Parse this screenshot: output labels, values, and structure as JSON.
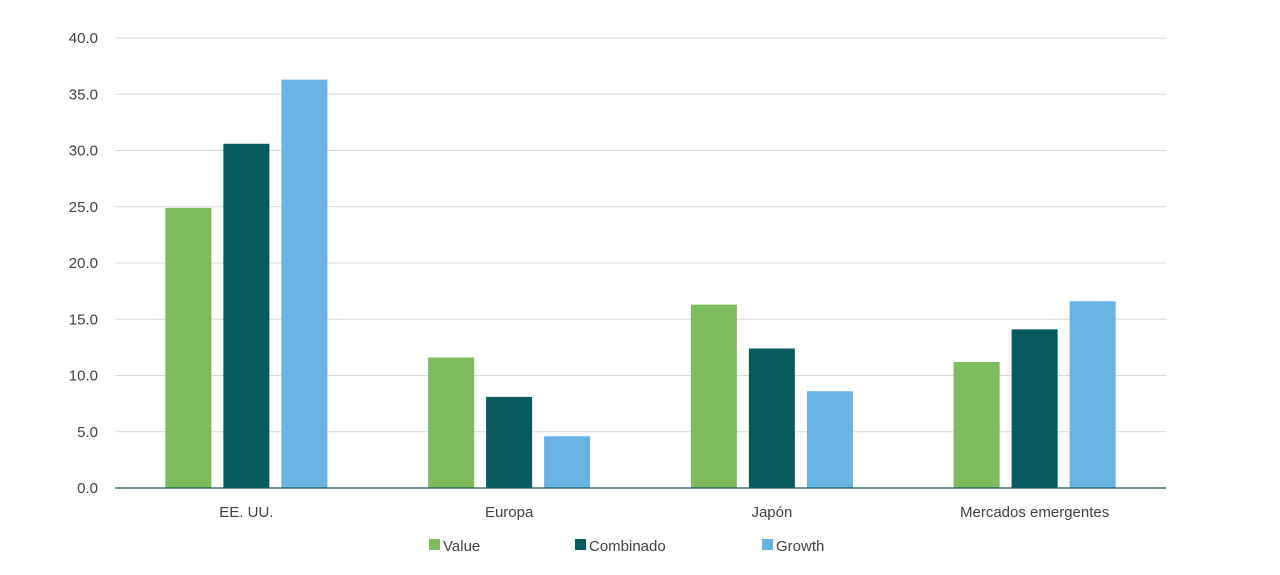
{
  "chart_data": {
    "type": "bar",
    "title": "",
    "xlabel": "",
    "ylabel": "",
    "categories": [
      "EE. UU.",
      "Europa",
      "Japón",
      "Mercados emergentes"
    ],
    "series": [
      {
        "name": "Value",
        "color": "#7dbb5d",
        "values": [
          24.9,
          11.6,
          16.3,
          11.2
        ]
      },
      {
        "name": "Combinado",
        "color": "#055a5e",
        "values": [
          30.6,
          8.1,
          12.4,
          14.1
        ]
      },
      {
        "name": "Growth",
        "color": "#67b3e4",
        "values": [
          36.3,
          4.6,
          8.6,
          16.6
        ]
      }
    ],
    "ylim": [
      0,
      40
    ],
    "yticks": [
      "0.0",
      "5.0",
      "10.0",
      "15.0",
      "20.0",
      "25.0",
      "30.0",
      "35.0",
      "40.0"
    ],
    "grid": true,
    "legend": "bottom-center"
  }
}
